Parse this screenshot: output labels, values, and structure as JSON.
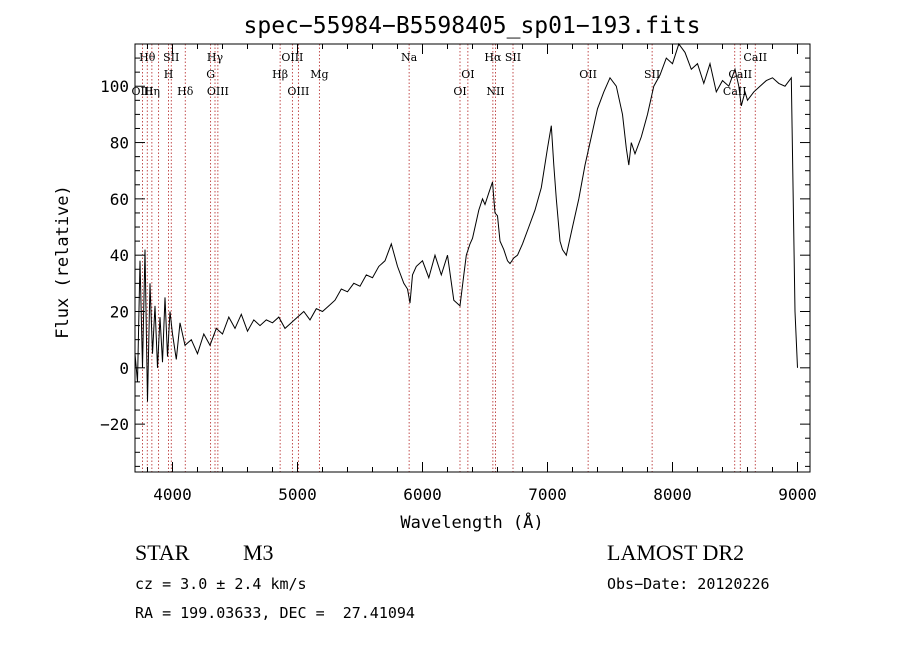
{
  "chart_data": {
    "type": "line",
    "title": "spec−55984−B5598405_sp01−193.fits",
    "xlabel": "Wavelength (Å)",
    "ylabel": "Flux (relative)",
    "xlim": [
      3700,
      9100
    ],
    "ylim": [
      -37,
      115
    ],
    "x_ticks": [
      4000,
      5000,
      6000,
      7000,
      8000,
      9000
    ],
    "y_ticks": [
      -20,
      0,
      20,
      40,
      60,
      80,
      100
    ],
    "x_tick_labels": [
      "4000",
      "5000",
      "6000",
      "7000",
      "8000",
      "9000"
    ],
    "y_tick_labels": [
      "−20",
      "0",
      "20",
      "40",
      "60",
      "80",
      "100"
    ],
    "grid": false,
    "series": [
      {
        "x": [
          3700,
          3720,
          3740,
          3760,
          3780,
          3800,
          3820,
          3840,
          3860,
          3880,
          3900,
          3920,
          3940,
          3960,
          3980,
          4000,
          4030,
          4060,
          4100,
          4150,
          4200,
          4250,
          4300,
          4350,
          4400,
          4450,
          4500,
          4550,
          4600,
          4650,
          4700,
          4750,
          4800,
          4850,
          4900,
          4950,
          5000,
          5050,
          5100,
          5150,
          5200,
          5250,
          5300,
          5350,
          5400,
          5450,
          5500,
          5550,
          5600,
          5650,
          5700,
          5750,
          5800,
          5850,
          5880,
          5900,
          5920,
          5950,
          6000,
          6050,
          6100,
          6150,
          6200,
          6250,
          6300,
          6330,
          6350,
          6380,
          6400,
          6430,
          6450,
          6480,
          6500,
          6530,
          6560,
          6580,
          6600,
          6620,
          6650,
          6680,
          6700,
          6730,
          6760,
          6800,
          6850,
          6900,
          6950,
          7000,
          7030,
          7050,
          7070,
          7100,
          7120,
          7150,
          7200,
          7250,
          7300,
          7350,
          7400,
          7450,
          7500,
          7550,
          7600,
          7630,
          7650,
          7670,
          7700,
          7750,
          7800,
          7850,
          7900,
          7950,
          8000,
          8050,
          8100,
          8150,
          8200,
          8250,
          8300,
          8350,
          8400,
          8450,
          8500,
          8530,
          8550,
          8580,
          8600,
          8650,
          8700,
          8750,
          8800,
          8850,
          8900,
          8950,
          8980,
          9000
        ],
        "y": [
          5,
          -5,
          38,
          0,
          42,
          -12,
          30,
          5,
          22,
          0,
          18,
          2,
          25,
          4,
          20,
          12,
          3,
          16,
          8,
          10,
          5,
          12,
          8,
          14,
          12,
          18,
          14,
          19,
          13,
          17,
          15,
          17,
          16,
          18,
          14,
          16,
          18,
          20,
          17,
          21,
          20,
          22,
          24,
          28,
          27,
          30,
          29,
          33,
          32,
          36,
          38,
          44,
          36,
          30,
          28,
          23,
          33,
          36,
          38,
          32,
          40,
          33,
          40,
          24,
          22,
          33,
          40,
          44,
          46,
          52,
          56,
          60,
          58,
          62,
          66,
          55,
          54,
          45,
          42,
          38,
          37,
          39,
          40,
          44,
          50,
          56,
          64,
          78,
          86,
          72,
          60,
          45,
          42,
          40,
          50,
          60,
          72,
          82,
          92,
          98,
          103,
          100,
          90,
          78,
          72,
          80,
          76,
          82,
          90,
          100,
          104,
          110,
          108,
          115,
          112,
          106,
          108,
          101,
          108,
          98,
          102,
          100,
          106,
          100,
          93,
          98,
          95,
          98,
          100,
          102,
          103,
          101,
          100,
          103,
          20,
          0
        ]
      }
    ],
    "annotations": [
      {
        "label": "Hθ",
        "x": 3798,
        "row": 0
      },
      {
        "label": "SII",
        "x": 3990,
        "row": 0
      },
      {
        "label": "Hγ",
        "x": 4340,
        "row": 0
      },
      {
        "label": "OIII",
        "x": 4959,
        "row": 0
      },
      {
        "label": "Na",
        "x": 5893,
        "row": 0
      },
      {
        "label": "Hα",
        "x": 6563,
        "row": 0
      },
      {
        "label": "SII",
        "x": 6724,
        "row": 0
      },
      {
        "label": "CaII",
        "x": 8662,
        "row": 0
      },
      {
        "label": "H",
        "x": 3968,
        "row": 1
      },
      {
        "label": "G",
        "x": 4305,
        "row": 1
      },
      {
        "label": "Hβ",
        "x": 4861,
        "row": 1
      },
      {
        "label": "Mg",
        "x": 5175,
        "row": 1
      },
      {
        "label": "OI",
        "x": 6363,
        "row": 1
      },
      {
        "label": "OII",
        "x": 7325,
        "row": 1
      },
      {
        "label": "SII",
        "x": 7837,
        "row": 1
      },
      {
        "label": "CaII",
        "x": 8542,
        "row": 1
      },
      {
        "label": "OIII",
        "x": 3760,
        "row": 2
      },
      {
        "label": "Hη",
        "x": 3835,
        "row": 2
      },
      {
        "label": "Hδ",
        "x": 4102,
        "row": 2
      },
      {
        "label": "OIII",
        "x": 4363,
        "row": 2
      },
      {
        "label": "OIII",
        "x": 5007,
        "row": 2
      },
      {
        "label": "OI",
        "x": 6300,
        "row": 2
      },
      {
        "label": "NII",
        "x": 6584,
        "row": 2
      },
      {
        "label": "CaII",
        "x": 8498,
        "row": 2
      }
    ],
    "line_markers": [
      3760,
      3798,
      3835,
      3889,
      3968,
      3990,
      4102,
      4305,
      4340,
      4363,
      4861,
      4959,
      5007,
      5175,
      5893,
      6300,
      6363,
      6563,
      6584,
      6724,
      7325,
      7837,
      8498,
      8542,
      8662
    ],
    "line_color": "#000000",
    "marker_color": "#b22222"
  },
  "info": {
    "object_type": "STAR",
    "subclass": "M3",
    "survey": "LAMOST DR2",
    "velocity": "cz = 3.0 ± 2.4 km/s",
    "obs_date": "Obs−Date: 20120226",
    "coords": "RA = 199.03633, DEC =  27.41094"
  }
}
